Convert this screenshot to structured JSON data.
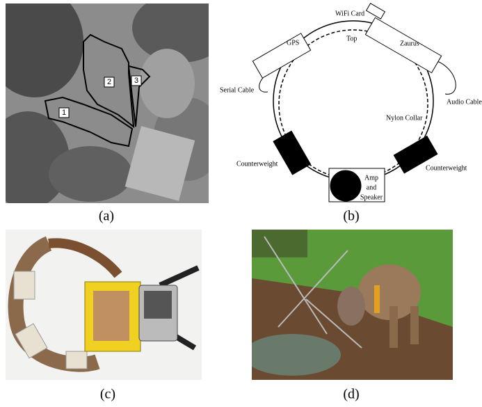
{
  "panel_a": {
    "caption": "(a)",
    "region_labels": [
      "1",
      "2",
      "3"
    ]
  },
  "panel_b": {
    "caption": "(b)",
    "labels": {
      "wifi_card": "WiFi Card",
      "top": "Top",
      "zaurus": "Zaurus",
      "gps": "GPS",
      "serial_cable": "Serial Cable",
      "audio_cable": "Audio Cable",
      "nylon_collar": "Nylon Collar",
      "counterweight_left": "Counterweight",
      "counterweight_right": "Counterweight",
      "amp_speaker": [
        "Amp",
        "and",
        "Speaker"
      ]
    }
  },
  "panel_c": {
    "caption": "(c)"
  },
  "panel_d": {
    "caption": "(d)"
  }
}
